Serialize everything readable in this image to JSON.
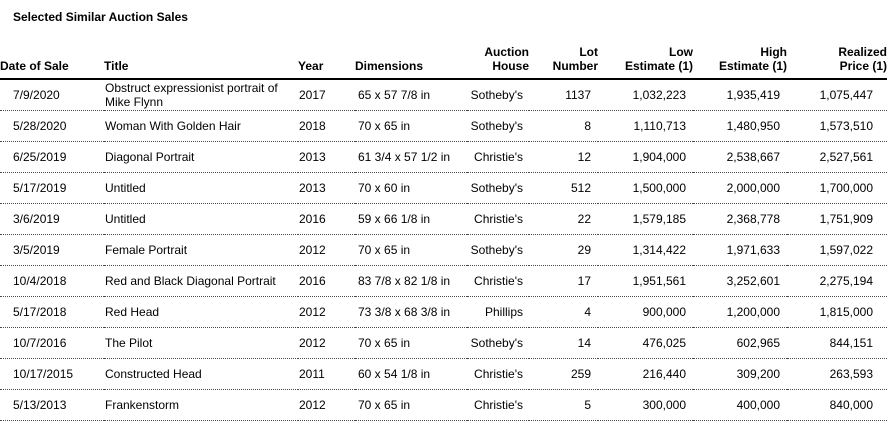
{
  "title": "Selected Similar Auction Sales",
  "table": {
    "columns": [
      {
        "key": "date",
        "lines": [
          "Date of Sale"
        ],
        "align": "left"
      },
      {
        "key": "title",
        "lines": [
          "Title"
        ],
        "align": "left"
      },
      {
        "key": "year",
        "lines": [
          "Year"
        ],
        "align": "left"
      },
      {
        "key": "dimensions",
        "lines": [
          "Dimensions"
        ],
        "align": "left"
      },
      {
        "key": "house",
        "lines": [
          "Auction",
          "House"
        ],
        "align": "right"
      },
      {
        "key": "lot",
        "lines": [
          "Lot",
          "Number"
        ],
        "align": "right"
      },
      {
        "key": "low",
        "lines": [
          "Low",
          "Estimate (1)"
        ],
        "align": "right"
      },
      {
        "key": "high",
        "lines": [
          "High",
          "Estimate (1)"
        ],
        "align": "right"
      },
      {
        "key": "realized",
        "lines": [
          "Realized",
          "Price (1)"
        ],
        "align": "right"
      }
    ],
    "rows": [
      {
        "date": "7/9/2020",
        "title": "Obstruct expressionist portrait of Mike Flynn",
        "year": "2017",
        "dimensions": "65 x 57 7/8 in",
        "house": "Sotheby's",
        "lot": "1137",
        "low": "1,032,223",
        "high": "1,935,419",
        "realized": "1,075,447"
      },
      {
        "date": "5/28/2020",
        "title": "Woman With Golden Hair",
        "year": "2018",
        "dimensions": "70 x 65 in",
        "house": "Sotheby's",
        "lot": "8",
        "low": "1,110,713",
        "high": "1,480,950",
        "realized": "1,573,510"
      },
      {
        "date": "6/25/2019",
        "title": "Diagonal Portrait",
        "year": "2013",
        "dimensions": "61 3/4 x 57 1/2 in",
        "house": "Christie's",
        "lot": "12",
        "low": "1,904,000",
        "high": "2,538,667",
        "realized": "2,527,561"
      },
      {
        "date": "5/17/2019",
        "title": "Untitled",
        "year": "2013",
        "dimensions": "70 x 60 in",
        "house": "Sotheby's",
        "lot": "512",
        "low": "1,500,000",
        "high": "2,000,000",
        "realized": "1,700,000"
      },
      {
        "date": "3/6/2019",
        "title": "Untitled",
        "year": "2016",
        "dimensions": "59 x 66 1/8 in",
        "house": "Christie's",
        "lot": "22",
        "low": "1,579,185",
        "high": "2,368,778",
        "realized": "1,751,909"
      },
      {
        "date": "3/5/2019",
        "title": "Female Portrait",
        "year": "2012",
        "dimensions": "70 x 65 in",
        "house": "Sotheby's",
        "lot": "29",
        "low": "1,314,422",
        "high": "1,971,633",
        "realized": "1,597,022"
      },
      {
        "date": "10/4/2018",
        "title": "Red and Black Diagonal Portrait",
        "year": "2016",
        "dimensions": "83 7/8 x 82 1/8 in",
        "house": "Christie's",
        "lot": "17",
        "low": "1,951,561",
        "high": "3,252,601",
        "realized": "2,275,194"
      },
      {
        "date": "5/17/2018",
        "title": "Red Head",
        "year": "2012",
        "dimensions": "73 3/8 x 68 3/8 in",
        "house": "Phillips",
        "lot": "4",
        "low": "900,000",
        "high": "1,200,000",
        "realized": "1,815,000"
      },
      {
        "date": "10/7/2016",
        "title": "The Pilot",
        "year": "2012",
        "dimensions": "70 x 65 in",
        "house": "Sotheby's",
        "lot": "14",
        "low": "476,025",
        "high": "602,965",
        "realized": "844,151"
      },
      {
        "date": "10/17/2015",
        "title": "Constructed Head",
        "year": "2011",
        "dimensions": "60 x 54 1/8 in",
        "house": "Christie's",
        "lot": "259",
        "low": "216,440",
        "high": "309,200",
        "realized": "263,593"
      },
      {
        "date": "5/13/2013",
        "title": "Frankenstorm",
        "year": "2012",
        "dimensions": "70 x 65 in",
        "house": "Christie's",
        "lot": "5",
        "low": "300,000",
        "high": "400,000",
        "realized": "840,000"
      }
    ]
  }
}
